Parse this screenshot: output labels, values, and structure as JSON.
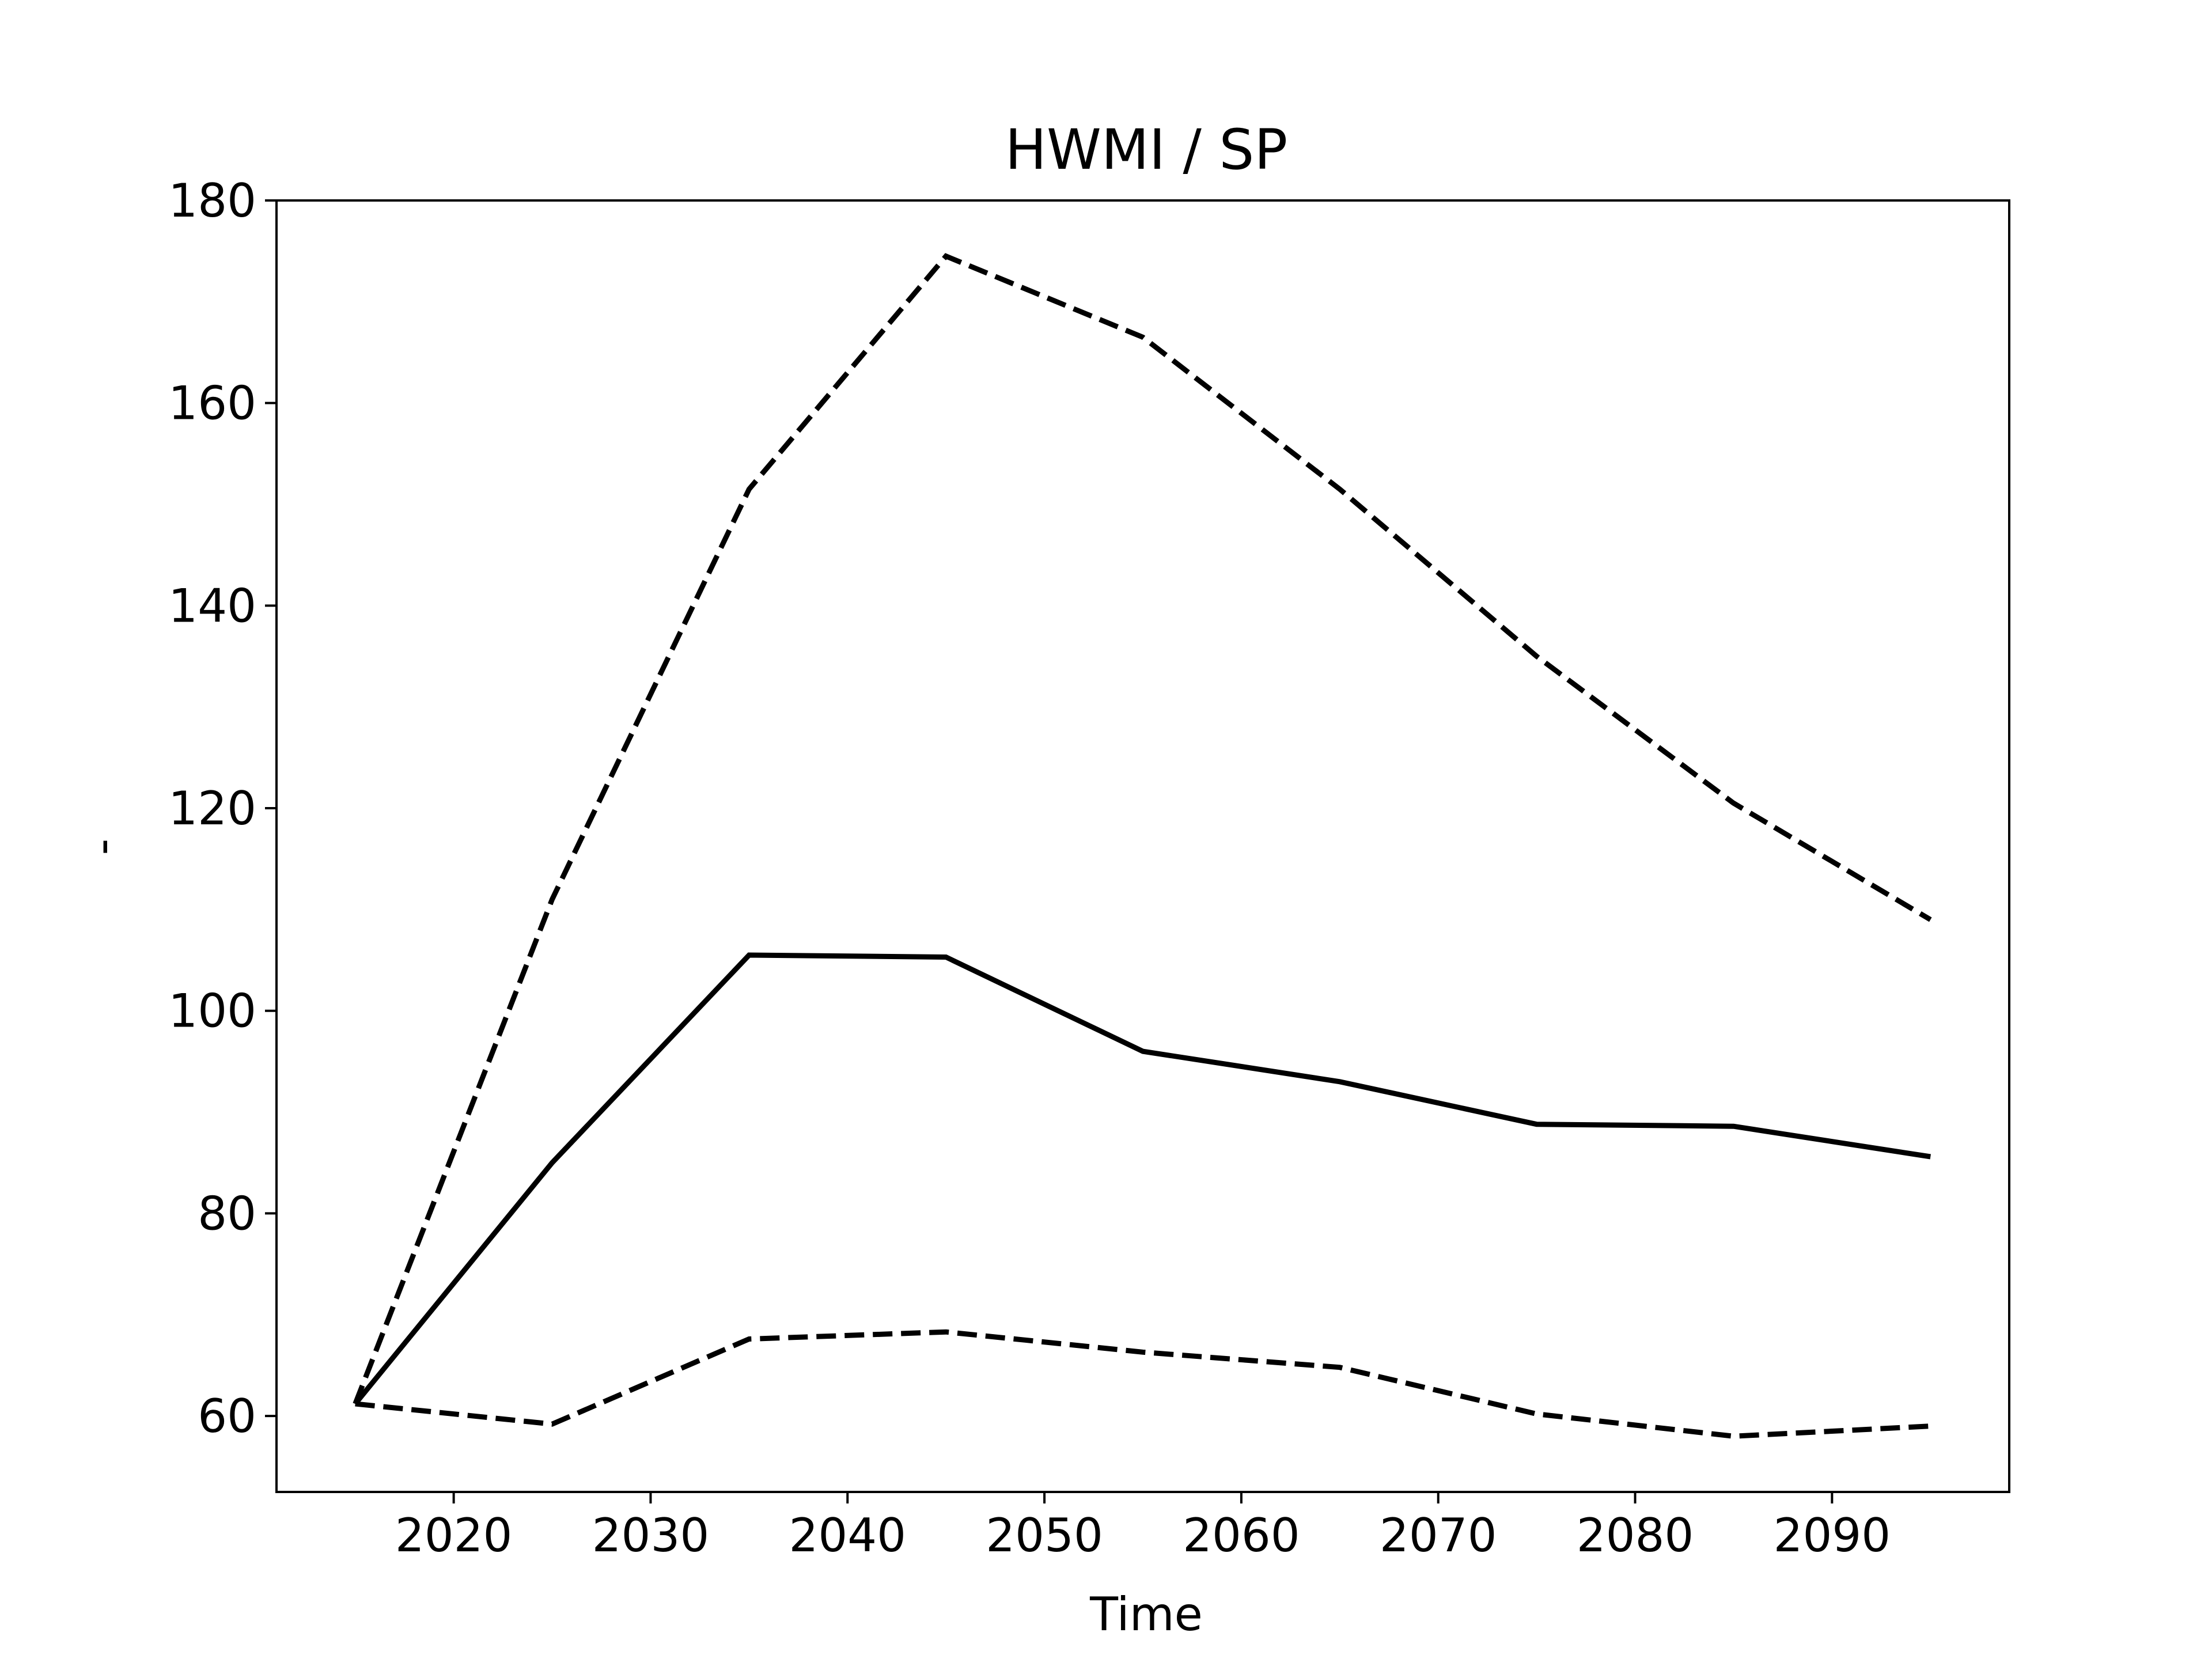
{
  "chart_data": {
    "type": "line",
    "title": "HWMI / SP",
    "xlabel": "Time",
    "ylabel": "-",
    "xlim": [
      2011,
      2099
    ],
    "ylim": [
      52.5,
      180
    ],
    "xticks": [
      2020,
      2030,
      2040,
      2050,
      2060,
      2070,
      2080,
      2090
    ],
    "yticks": [
      60,
      80,
      100,
      120,
      140,
      160,
      180
    ],
    "grid": false,
    "legend": "none",
    "x": [
      2015,
      2025,
      2035,
      2045,
      2055,
      2065,
      2075,
      2085,
      2095
    ],
    "series": [
      {
        "style": "solid",
        "color": "#000000",
        "values": [
          61.2,
          85.0,
          105.5,
          105.3,
          96.0,
          93.0,
          88.8,
          88.6,
          85.6
        ]
      },
      {
        "style": "dashed",
        "color": "#000000",
        "values": [
          61.2,
          111.0,
          151.5,
          174.5,
          166.5,
          151.5,
          135.0,
          120.5,
          109.0
        ]
      },
      {
        "style": "dashed",
        "color": "#000000",
        "values": [
          61.2,
          59.2,
          67.6,
          68.3,
          66.3,
          64.8,
          60.2,
          58.0,
          59.0
        ]
      }
    ]
  }
}
